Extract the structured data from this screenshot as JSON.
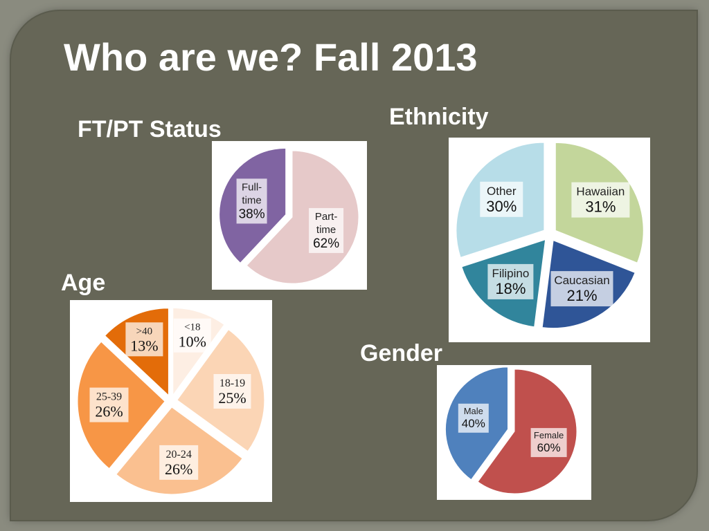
{
  "slide": {
    "title": "Who are we? Fall 2013",
    "background": "#666657"
  },
  "chart_data": [
    {
      "id": "ftpt",
      "type": "pie",
      "title": "FT/PT Status",
      "slices": [
        {
          "label_lines": [
            "Full-",
            "time"
          ],
          "value": 38,
          "value_label": "38%",
          "color": "#8064a2",
          "exploded": true
        },
        {
          "label_lines": [
            "Part-",
            "time"
          ],
          "value": 62,
          "value_label": "62%",
          "color": "#e6c9c9",
          "exploded": false
        }
      ]
    },
    {
      "id": "ethnicity",
      "type": "pie",
      "title": "Ethnicity",
      "slices": [
        {
          "label_lines": [
            "Hawaiian"
          ],
          "value": 31,
          "value_label": "31%",
          "color": "#c3d69b"
        },
        {
          "label_lines": [
            "Caucasian"
          ],
          "value": 21,
          "value_label": "21%",
          "color": "#2f5597"
        },
        {
          "label_lines": [
            "Filipino"
          ],
          "value": 18,
          "value_label": "18%",
          "color": "#31859c"
        },
        {
          "label_lines": [
            "Other"
          ],
          "value": 30,
          "value_label": "30%",
          "color": "#b7dde8"
        }
      ]
    },
    {
      "id": "age",
      "type": "pie",
      "title": "Age",
      "slices": [
        {
          "label_lines": [
            "<18"
          ],
          "value": 10,
          "value_label": "10%",
          "color": "#fdeee3"
        },
        {
          "label_lines": [
            "18-19"
          ],
          "value": 25,
          "value_label": "25%",
          "color": "#fbd5b5"
        },
        {
          "label_lines": [
            "20-24"
          ],
          "value": 26,
          "value_label": "26%",
          "color": "#fac090"
        },
        {
          "label_lines": [
            "25-39"
          ],
          "value": 26,
          "value_label": "26%",
          "color": "#f79646"
        },
        {
          "label_lines": [
            ">40"
          ],
          "value": 13,
          "value_label": "13%",
          "color": "#e36c09"
        }
      ]
    },
    {
      "id": "gender",
      "type": "pie",
      "title": "Gender",
      "slices": [
        {
          "label_lines": [
            "Female"
          ],
          "value": 60,
          "value_label": "60%",
          "color": "#c0504d",
          "exploded": false
        },
        {
          "label_lines": [
            "Male"
          ],
          "value": 40,
          "value_label": "40%",
          "color": "#4f81bd",
          "exploded": true
        }
      ]
    }
  ]
}
